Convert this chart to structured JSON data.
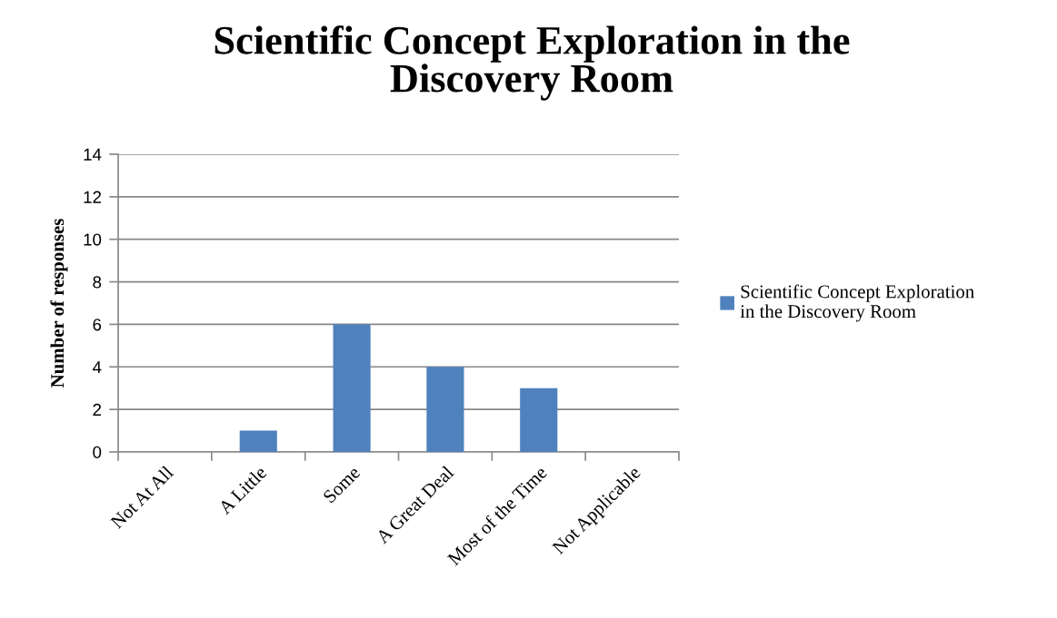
{
  "chart_data": {
    "type": "bar",
    "title": "Scientific Concept Exploration in the\nDiscovery Room",
    "ylabel": "Number of responses",
    "categories": [
      "Not At All",
      "A Little",
      "Some",
      "A Great Deal",
      "Most of the Time",
      "Not Applicable"
    ],
    "series": [
      {
        "name": "Scientific Concept Exploration\nin the Discovery Room",
        "color": "#4f81bd",
        "values": [
          0,
          1,
          6,
          4,
          3,
          0
        ]
      }
    ],
    "ylim": [
      0,
      14
    ],
    "yticks": [
      0,
      2,
      4,
      6,
      8,
      10,
      12,
      14
    ],
    "grid": "y",
    "legend": "right"
  }
}
